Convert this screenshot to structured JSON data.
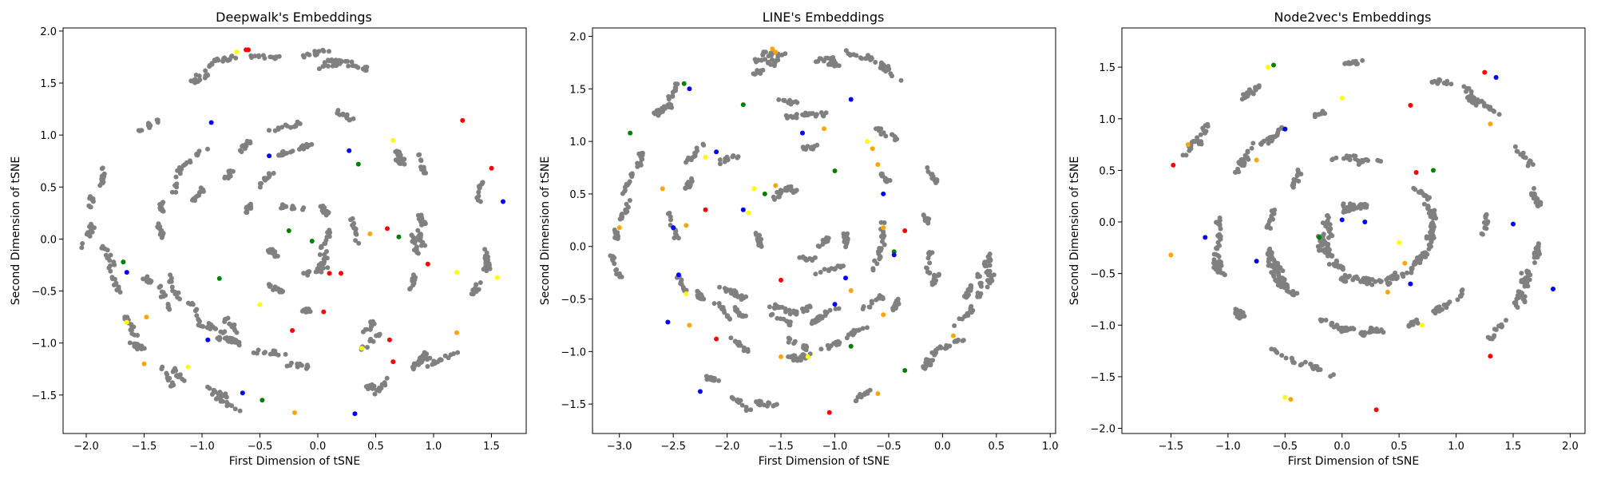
{
  "chart_data": [
    {
      "type": "scatter",
      "title": "Deepwalk's Embeddings",
      "xlabel": "First Dimension of tSNE",
      "ylabel": "Second Dimension of tSNE",
      "xlim": [
        -2.2,
        1.8
      ],
      "ylim": [
        -1.87,
        2.03
      ],
      "xticks": [
        -2.0,
        -1.5,
        -1.0,
        -0.5,
        0.0,
        0.5,
        1.0,
        1.5
      ],
      "xtick_labels": [
        "−2.0",
        "−1.5",
        "−1.0",
        "−0.5",
        "0.0",
        "0.5",
        "1.0",
        "1.5"
      ],
      "yticks": [
        -1.5,
        -1.0,
        -0.5,
        0.0,
        0.5,
        1.0,
        1.5,
        2.0
      ],
      "ytick_labels": [
        "−1.5",
        "−1.0",
        "−0.5",
        "0.0",
        "0.5",
        "1.0",
        "1.5",
        "2.0"
      ],
      "grid": false,
      "pattern": "ring",
      "n_points": 950,
      "ring_center": [
        -0.2,
        0.05
      ],
      "ring_radius": [
        1.8,
        1.78
      ],
      "highlight": [
        {
          "x": -0.62,
          "y": 1.82,
          "color": "#ff0000"
        },
        {
          "x": -0.6,
          "y": 1.82,
          "color": "#ff0000"
        },
        {
          "x": -0.7,
          "y": 1.8,
          "color": "#ffff00"
        },
        {
          "x": 1.25,
          "y": 1.14,
          "color": "#ff0000"
        },
        {
          "x": 0.27,
          "y": 0.85,
          "color": "#0000ff"
        },
        {
          "x": 0.35,
          "y": 0.72,
          "color": "#008000"
        },
        {
          "x": 0.65,
          "y": 0.95,
          "color": "#ffff00"
        },
        {
          "x": -0.92,
          "y": 1.12,
          "color": "#0000ff"
        },
        {
          "x": 1.5,
          "y": 0.68,
          "color": "#ff0000"
        },
        {
          "x": 1.6,
          "y": 0.36,
          "color": "#0000ff"
        },
        {
          "x": -0.42,
          "y": 0.8,
          "color": "#0000ff"
        },
        {
          "x": 0.7,
          "y": 0.02,
          "color": "#008000"
        },
        {
          "x": 0.6,
          "y": 0.1,
          "color": "#ff0000"
        },
        {
          "x": 0.45,
          "y": 0.05,
          "color": "#ffa500"
        },
        {
          "x": -0.25,
          "y": 0.08,
          "color": "#008000"
        },
        {
          "x": -0.05,
          "y": -0.02,
          "color": "#008000"
        },
        {
          "x": -1.68,
          "y": -0.22,
          "color": "#008000"
        },
        {
          "x": -1.65,
          "y": -0.32,
          "color": "#0000ff"
        },
        {
          "x": -0.85,
          "y": -0.38,
          "color": "#008000"
        },
        {
          "x": 0.1,
          "y": -0.33,
          "color": "#ff0000"
        },
        {
          "x": 0.2,
          "y": -0.33,
          "color": "#ff0000"
        },
        {
          "x": 0.95,
          "y": -0.24,
          "color": "#ff0000"
        },
        {
          "x": 1.2,
          "y": -0.32,
          "color": "#ffff00"
        },
        {
          "x": 1.55,
          "y": -0.37,
          "color": "#ffff00"
        },
        {
          "x": -0.5,
          "y": -0.63,
          "color": "#ffff00"
        },
        {
          "x": 0.05,
          "y": -0.7,
          "color": "#ff0000"
        },
        {
          "x": -1.65,
          "y": -0.8,
          "color": "#ffff00"
        },
        {
          "x": -1.48,
          "y": -0.75,
          "color": "#ffa500"
        },
        {
          "x": -0.95,
          "y": -0.97,
          "color": "#0000ff"
        },
        {
          "x": -0.22,
          "y": -0.88,
          "color": "#ff0000"
        },
        {
          "x": 0.62,
          "y": -0.97,
          "color": "#ff0000"
        },
        {
          "x": 1.2,
          "y": -0.9,
          "color": "#ffa500"
        },
        {
          "x": 0.38,
          "y": -1.05,
          "color": "#ffff00"
        },
        {
          "x": 0.65,
          "y": -1.18,
          "color": "#ff0000"
        },
        {
          "x": -1.12,
          "y": -1.23,
          "color": "#ffff00"
        },
        {
          "x": -0.65,
          "y": -1.48,
          "color": "#0000ff"
        },
        {
          "x": -0.48,
          "y": -1.55,
          "color": "#008000"
        },
        {
          "x": -0.2,
          "y": -1.67,
          "color": "#ffa500"
        },
        {
          "x": 0.32,
          "y": -1.68,
          "color": "#0000ff"
        },
        {
          "x": -1.5,
          "y": -1.2,
          "color": "#ffa500"
        }
      ]
    },
    {
      "type": "scatter",
      "title": "LINE's Embeddings",
      "xlabel": "First Dimension of tSNE",
      "ylabel": "Second Dimension of tSNE",
      "xlim": [
        -3.25,
        1.05
      ],
      "ylim": [
        -1.78,
        2.08
      ],
      "xticks": [
        -3.0,
        -2.5,
        -2.0,
        -1.5,
        -1.0,
        -0.5,
        0.0,
        0.5,
        1.0
      ],
      "xtick_labels": [
        "−3.0",
        "−2.5",
        "−2.0",
        "−1.5",
        "−1.0",
        "−0.5",
        "0.0",
        "0.5",
        "1.0"
      ],
      "yticks": [
        -1.5,
        -1.0,
        -0.5,
        0.0,
        0.5,
        1.0,
        1.5,
        2.0
      ],
      "ytick_labels": [
        "−1.5",
        "−1.0",
        "−0.5",
        "0.0",
        "0.5",
        "1.0",
        "1.5",
        "2.0"
      ],
      "grid": false,
      "pattern": "ring",
      "n_points": 950,
      "ring_center": [
        -1.3,
        0.15
      ],
      "ring_radius": [
        1.8,
        1.75
      ],
      "highlight": [
        {
          "x": -1.58,
          "y": 1.88,
          "color": "#ffa500"
        },
        {
          "x": -1.55,
          "y": 1.85,
          "color": "#ffa500"
        },
        {
          "x": -2.4,
          "y": 1.55,
          "color": "#008000"
        },
        {
          "x": -2.35,
          "y": 1.5,
          "color": "#0000ff"
        },
        {
          "x": -2.9,
          "y": 1.08,
          "color": "#008000"
        },
        {
          "x": -1.85,
          "y": 1.35,
          "color": "#008000"
        },
        {
          "x": -2.2,
          "y": 0.85,
          "color": "#ffff00"
        },
        {
          "x": -2.1,
          "y": 0.9,
          "color": "#0000ff"
        },
        {
          "x": -1.3,
          "y": 1.08,
          "color": "#0000ff"
        },
        {
          "x": -1.1,
          "y": 1.12,
          "color": "#ffa500"
        },
        {
          "x": -0.85,
          "y": 1.4,
          "color": "#0000ff"
        },
        {
          "x": -0.7,
          "y": 1.0,
          "color": "#ffff00"
        },
        {
          "x": -0.65,
          "y": 0.93,
          "color": "#ffa500"
        },
        {
          "x": -0.6,
          "y": 0.78,
          "color": "#ffa500"
        },
        {
          "x": -1.0,
          "y": 0.72,
          "color": "#008000"
        },
        {
          "x": -1.75,
          "y": 0.55,
          "color": "#ffff00"
        },
        {
          "x": -1.65,
          "y": 0.5,
          "color": "#008000"
        },
        {
          "x": -1.55,
          "y": 0.58,
          "color": "#ffa500"
        },
        {
          "x": -2.6,
          "y": 0.55,
          "color": "#ffa500"
        },
        {
          "x": -3.0,
          "y": 0.18,
          "color": "#ffa500"
        },
        {
          "x": -2.5,
          "y": 0.18,
          "color": "#0000ff"
        },
        {
          "x": -2.38,
          "y": 0.2,
          "color": "#ffa500"
        },
        {
          "x": -2.2,
          "y": 0.35,
          "color": "#ff0000"
        },
        {
          "x": -1.85,
          "y": 0.35,
          "color": "#0000ff"
        },
        {
          "x": -1.8,
          "y": 0.32,
          "color": "#ffff00"
        },
        {
          "x": -0.55,
          "y": 0.5,
          "color": "#0000ff"
        },
        {
          "x": -0.35,
          "y": 0.15,
          "color": "#ff0000"
        },
        {
          "x": -0.55,
          "y": 0.18,
          "color": "#ffa500"
        },
        {
          "x": -0.45,
          "y": -0.05,
          "color": "#008000"
        },
        {
          "x": -0.45,
          "y": -0.08,
          "color": "#0000ff"
        },
        {
          "x": -2.45,
          "y": -0.27,
          "color": "#0000ff"
        },
        {
          "x": -2.38,
          "y": -0.45,
          "color": "#ffff00"
        },
        {
          "x": -1.5,
          "y": -0.32,
          "color": "#ff0000"
        },
        {
          "x": -0.9,
          "y": -0.3,
          "color": "#0000ff"
        },
        {
          "x": -0.85,
          "y": -0.42,
          "color": "#ffa500"
        },
        {
          "x": -1.0,
          "y": -0.55,
          "color": "#0000ff"
        },
        {
          "x": -0.55,
          "y": -0.65,
          "color": "#ffa500"
        },
        {
          "x": -2.55,
          "y": -0.72,
          "color": "#0000ff"
        },
        {
          "x": -2.35,
          "y": -0.75,
          "color": "#ffa500"
        },
        {
          "x": -2.1,
          "y": -0.88,
          "color": "#ff0000"
        },
        {
          "x": -0.85,
          "y": -0.95,
          "color": "#008000"
        },
        {
          "x": -1.5,
          "y": -1.05,
          "color": "#ffa500"
        },
        {
          "x": -1.25,
          "y": -1.05,
          "color": "#ffff00"
        },
        {
          "x": -2.25,
          "y": -1.38,
          "color": "#0000ff"
        },
        {
          "x": -1.05,
          "y": -1.58,
          "color": "#ff0000"
        },
        {
          "x": -0.35,
          "y": -1.18,
          "color": "#008000"
        },
        {
          "x": 0.1,
          "y": -0.85,
          "color": "#ffa500"
        },
        {
          "x": -0.6,
          "y": -1.4,
          "color": "#ffa500"
        }
      ]
    },
    {
      "type": "scatter",
      "title": "Node2vec's Embeddings",
      "xlabel": "First Dimension of tSNE",
      "ylabel": "Second Dimension of tSNE",
      "xlim": [
        -1.93,
        2.13
      ],
      "ylim": [
        -2.05,
        1.88
      ],
      "xticks": [
        -1.5,
        -1.0,
        -0.5,
        0.0,
        0.5,
        1.0,
        1.5,
        2.0
      ],
      "xtick_labels": [
        "−1.5",
        "−1.0",
        "−0.5",
        "0.0",
        "0.5",
        "1.0",
        "1.5",
        "2.0"
      ],
      "yticks": [
        -2.0,
        -1.5,
        -1.0,
        -0.5,
        0.0,
        0.5,
        1.0,
        1.5
      ],
      "ytick_labels": [
        "−2.0",
        "−1.5",
        "−1.0",
        "−0.5",
        "0.0",
        "0.5",
        "1.0",
        "1.5"
      ],
      "grid": false,
      "pattern": "spiral",
      "n_points": 950,
      "ring_center": [
        0.2,
        -0.1
      ],
      "ring_radius": [
        1.75,
        1.75
      ],
      "highlight": [
        {
          "x": -0.6,
          "y": 1.52,
          "color": "#008000"
        },
        {
          "x": -0.65,
          "y": 1.5,
          "color": "#ffff00"
        },
        {
          "x": 0.0,
          "y": 1.2,
          "color": "#ffff00"
        },
        {
          "x": 1.25,
          "y": 1.45,
          "color": "#ff0000"
        },
        {
          "x": 1.35,
          "y": 1.4,
          "color": "#0000ff"
        },
        {
          "x": 0.6,
          "y": 1.13,
          "color": "#ff0000"
        },
        {
          "x": 1.3,
          "y": 0.95,
          "color": "#ffa500"
        },
        {
          "x": -1.35,
          "y": 0.75,
          "color": "#ffa500"
        },
        {
          "x": -0.5,
          "y": 0.9,
          "color": "#0000ff"
        },
        {
          "x": -0.75,
          "y": 0.6,
          "color": "#ffa500"
        },
        {
          "x": 0.65,
          "y": 0.48,
          "color": "#ff0000"
        },
        {
          "x": 0.8,
          "y": 0.5,
          "color": "#008000"
        },
        {
          "x": -1.48,
          "y": 0.55,
          "color": "#ff0000"
        },
        {
          "x": 0.0,
          "y": 0.02,
          "color": "#0000ff"
        },
        {
          "x": 0.2,
          "y": 0.0,
          "color": "#0000ff"
        },
        {
          "x": 0.5,
          "y": -0.2,
          "color": "#ffff00"
        },
        {
          "x": 0.55,
          "y": -0.4,
          "color": "#ffa500"
        },
        {
          "x": -0.2,
          "y": -0.15,
          "color": "#008000"
        },
        {
          "x": -0.75,
          "y": -0.38,
          "color": "#0000ff"
        },
        {
          "x": -1.2,
          "y": -0.15,
          "color": "#0000ff"
        },
        {
          "x": 1.5,
          "y": -0.02,
          "color": "#0000ff"
        },
        {
          "x": 1.85,
          "y": -0.65,
          "color": "#0000ff"
        },
        {
          "x": 0.6,
          "y": -0.6,
          "color": "#0000ff"
        },
        {
          "x": 0.7,
          "y": -1.0,
          "color": "#ffff00"
        },
        {
          "x": 0.4,
          "y": -0.68,
          "color": "#ffa500"
        },
        {
          "x": 1.3,
          "y": -1.3,
          "color": "#ff0000"
        },
        {
          "x": -0.5,
          "y": -1.7,
          "color": "#ffff00"
        },
        {
          "x": -0.45,
          "y": -1.72,
          "color": "#ffa500"
        },
        {
          "x": 0.3,
          "y": -1.82,
          "color": "#ff0000"
        },
        {
          "x": -1.5,
          "y": -0.32,
          "color": "#ffa500"
        }
      ]
    }
  ],
  "colors": {
    "point": "#808080",
    "highlight_palette": [
      "#ff0000",
      "#0000ff",
      "#008000",
      "#ffff00",
      "#ffa500"
    ]
  }
}
